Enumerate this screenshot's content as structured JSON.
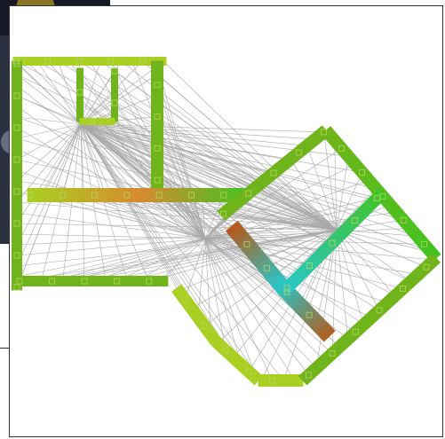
{
  "window": {
    "background": "#ffffff",
    "border": "#303030"
  },
  "backdrop": {
    "description_colors": {
      "dark": "#1e2430",
      "mid": "#3e4658",
      "light": "#8a93a6",
      "gold": "#b0922e"
    }
  },
  "diagram": {
    "ray_color": "#a8a8a8",
    "node_color": "#b8d860",
    "palette": {
      "green": "#6fb41a",
      "yellow_green": "#a9cf22",
      "light_green": "#3fc421",
      "orange": "#d78a2e",
      "brown": "#b55a1a",
      "cyan": "#2ac6c8",
      "teal": "#3fb59a"
    },
    "hubs": [
      {
        "name": "upper-room-hub"
      },
      {
        "name": "central-hub"
      },
      {
        "name": "right-room-hub"
      }
    ]
  }
}
